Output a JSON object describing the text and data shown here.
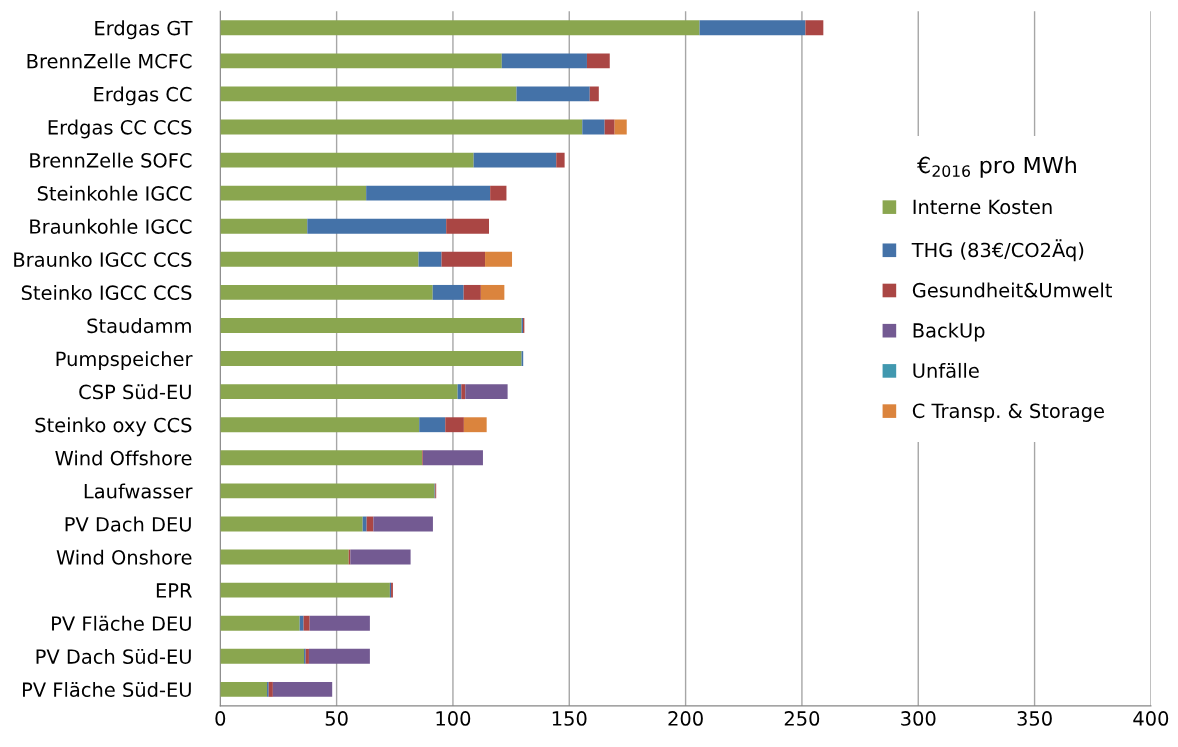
{
  "chart_data": {
    "type": "bar",
    "orientation": "horizontal",
    "stacked": true,
    "categories": [
      "Erdgas GT",
      "BrennZelle MCFC",
      "Erdgas CC",
      "Erdgas CC CCS",
      "BrennZelle SOFC",
      "Steinkohle IGCC",
      "Braunkohle IGCC",
      "Braunko IGCC CCS",
      "Steinko IGCC CCS",
      "Staudamm",
      "Pumpspeicher",
      "CSP Süd-EU",
      "Steinko oxy CCS",
      "Wind Offshore",
      "Laufwasser",
      "PV Dach DEU",
      "Wind Onshore",
      "EPR",
      "PV Fläche DEU",
      "PV Dach Süd-EU",
      "PV Fläche Süd-EU"
    ],
    "series": [
      {
        "name": "Interne Kosten",
        "color": "#8aa64f",
        "values": [
          206,
          121,
          127.3,
          155.6,
          108.9,
          62.7,
          37.4,
          85.2,
          91.3,
          129.5,
          129.5,
          102,
          85.5,
          86.8,
          92.1,
          61.2,
          55.2,
          72.9,
          34.1,
          36,
          20.1
        ]
      },
      {
        "name": "THG (83€/CO2Äq)",
        "color": "#4472a8",
        "values": [
          45.5,
          36.6,
          31.5,
          9.6,
          35.5,
          53.3,
          59.7,
          9.9,
          13.3,
          0.6,
          0.7,
          1.6,
          11.2,
          0,
          0.3,
          1.7,
          0,
          0.5,
          1.7,
          0.7,
          0.7
        ]
      },
      {
        "name": "Gesundheit&Umwelt",
        "color": "#aa4644",
        "values": [
          7.7,
          9.8,
          3.9,
          4.3,
          3.6,
          7,
          18.4,
          18.7,
          7.4,
          0.6,
          0,
          1.7,
          8,
          0.3,
          0.4,
          2.9,
          0.7,
          0.8,
          2.6,
          1.4,
          1.8
        ]
      },
      {
        "name": "BackUp",
        "color": "#735a92",
        "values": [
          0,
          0,
          0,
          0,
          0,
          0,
          0,
          0,
          0,
          0,
          0,
          18.2,
          0,
          25.8,
          0,
          25.6,
          25.9,
          0,
          25.9,
          26.2,
          25.5
        ]
      },
      {
        "name": "Unfälle",
        "color": "#4198af",
        "values": [
          0,
          0,
          0,
          0,
          0,
          0,
          0,
          0,
          0,
          0,
          0,
          0,
          0,
          0,
          0,
          0,
          0,
          0,
          0,
          0,
          0
        ]
      },
      {
        "name": "C Transp. & Storage",
        "color": "#db843d",
        "values": [
          0,
          0,
          0,
          5.2,
          0,
          0,
          0,
          11.6,
          10.1,
          0,
          0,
          0,
          9.8,
          0,
          0,
          0,
          0,
          0,
          0,
          0,
          0
        ]
      }
    ],
    "legend_title": "€$_{2016}$ pro MWh",
    "legend": "right",
    "xlim": [
      0,
      400
    ],
    "xticks": [
      0,
      50,
      100,
      150,
      200,
      250,
      300,
      350,
      400
    ],
    "grid": "x"
  }
}
